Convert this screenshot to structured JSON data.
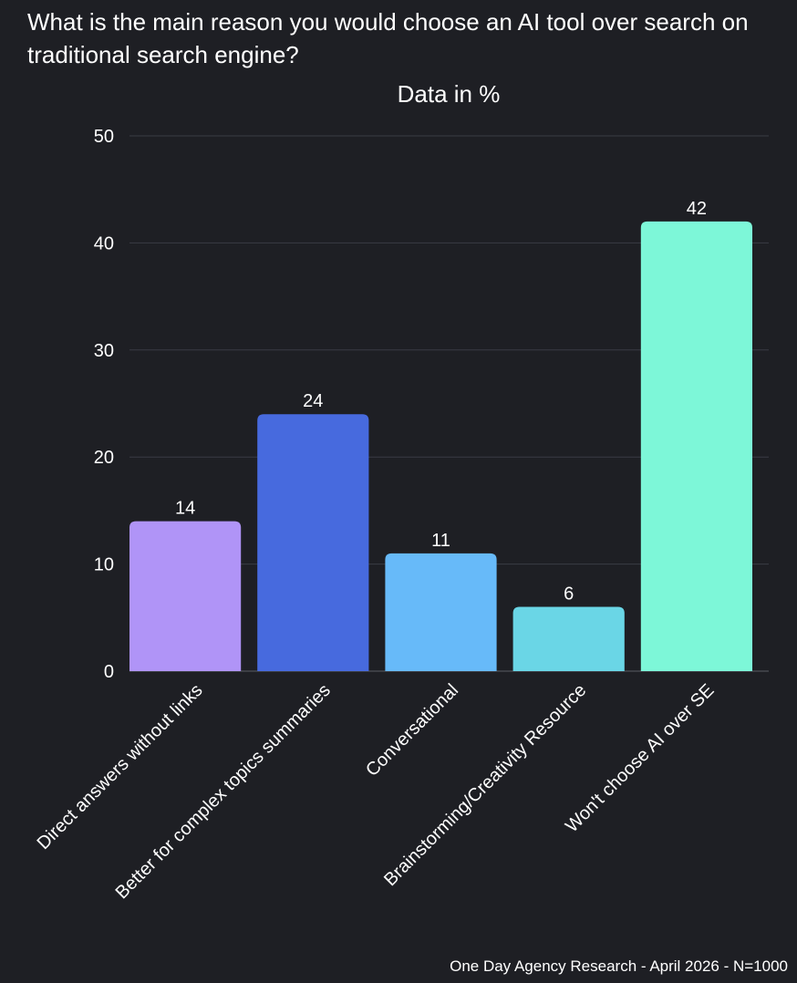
{
  "question": "What is the main reason you would choose an AI tool over search on traditional search engine?",
  "footer": "One Day Agency Research - April 2026 - N=1000",
  "chart_data": {
    "type": "bar",
    "title": "Data in %",
    "xlabel": "",
    "ylabel": "",
    "categories": [
      "Direct answers without links",
      "Better for complex topics summaries",
      "Conversational",
      "Brainstorming/Creativity Resource",
      "Won't choose AI over SE"
    ],
    "values": [
      14,
      24,
      11,
      6,
      42
    ],
    "colors": [
      "#b094f7",
      "#476ade",
      "#67baf9",
      "#6ad6e6",
      "#7df7d8"
    ],
    "ylim": [
      0,
      50
    ],
    "yticks": [
      0,
      10,
      20,
      30,
      40,
      50
    ],
    "grid": true,
    "data_labels": true,
    "legend": "none"
  }
}
